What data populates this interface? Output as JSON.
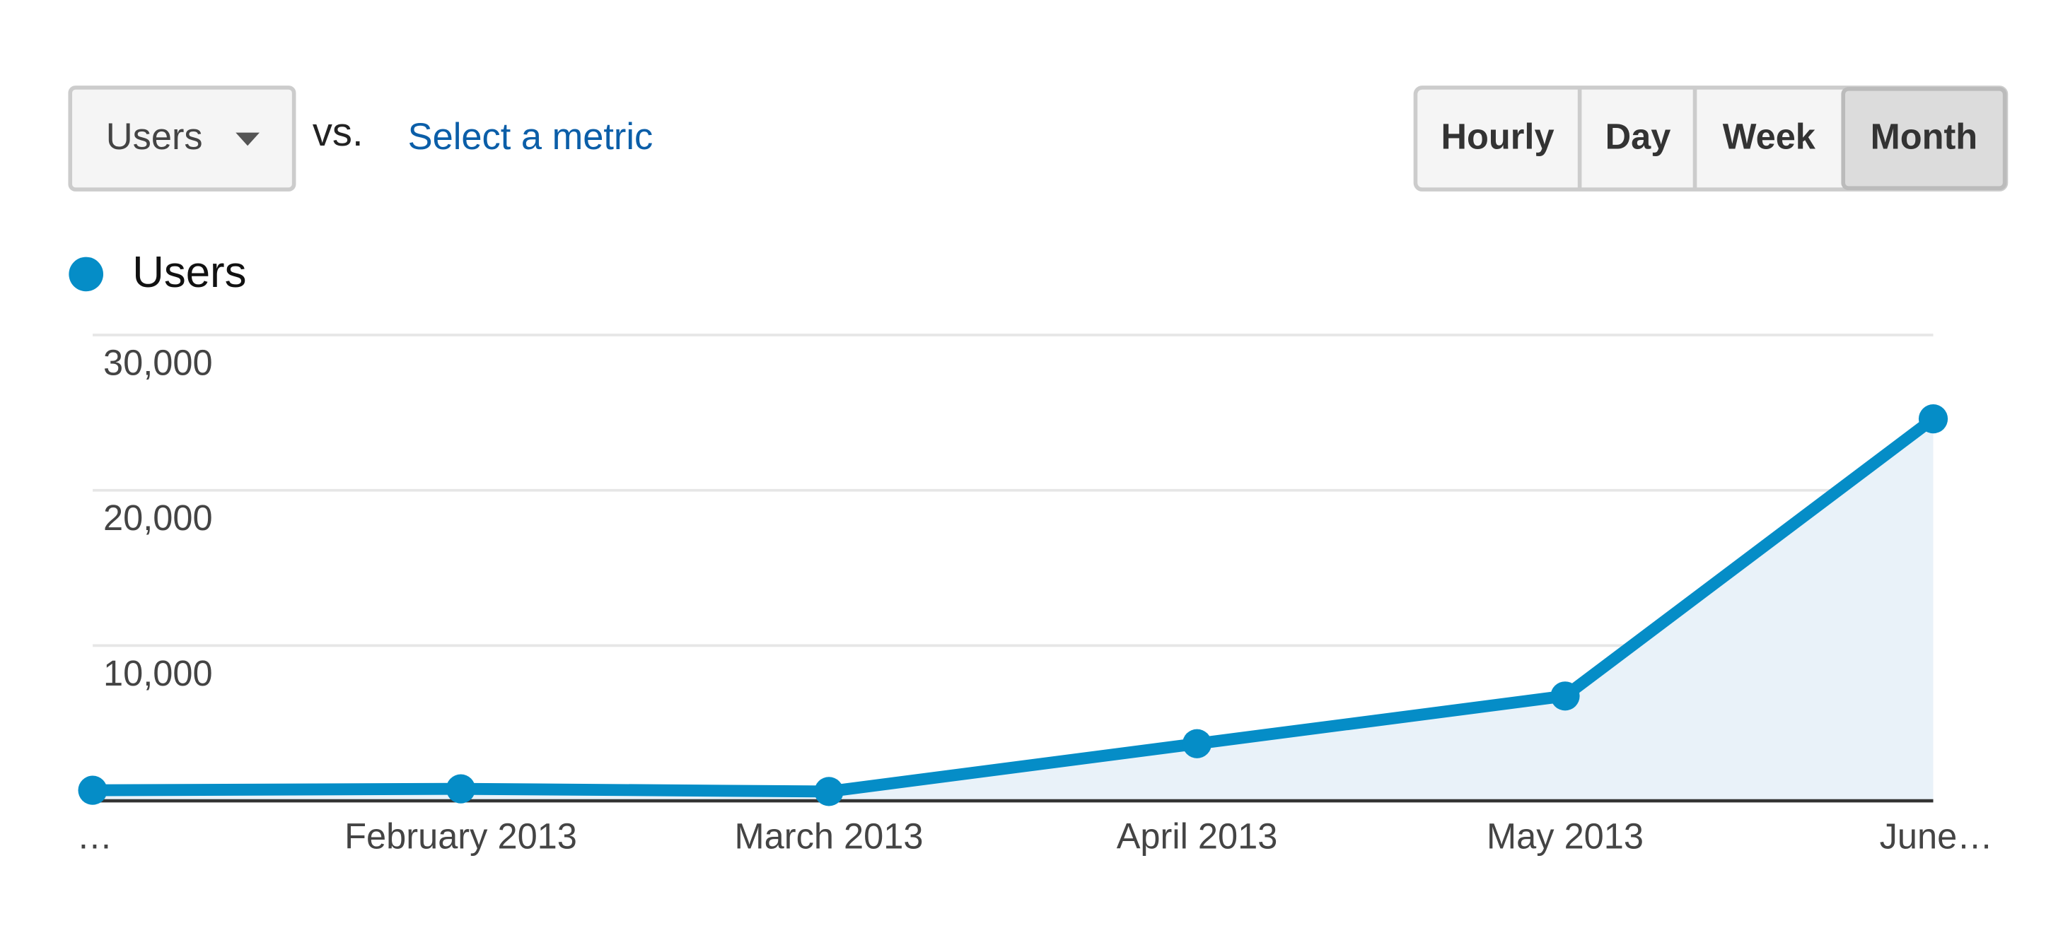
{
  "controls": {
    "metric": "Users",
    "vs": "vs.",
    "secondary": "Select a metric",
    "periods": [
      "Hourly",
      "Day",
      "Week",
      "Month"
    ]
  },
  "chart_data": {
    "type": "line",
    "area": true,
    "categories": [
      "…",
      "February 2013",
      "March 2013",
      "April 2013",
      "May 2013",
      "June…"
    ],
    "series": [
      {
        "name": "Users",
        "color": "#058dc7",
        "values": [
          680,
          770,
          600,
          3680,
          6750,
          24600
        ]
      }
    ],
    "ylim": [
      0,
      30000
    ],
    "yticks": [
      {
        "value": 10000,
        "label": "10,000"
      },
      {
        "value": 20000,
        "label": "20,000"
      },
      {
        "value": 30000,
        "label": "30,000"
      }
    ],
    "grid": true
  }
}
